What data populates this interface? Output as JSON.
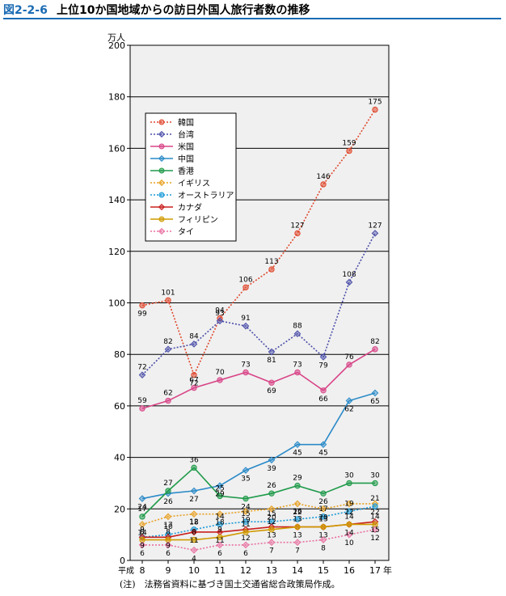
{
  "figure": {
    "number": "図2-2-6",
    "title": "上位10か国地域からの訪日外国人旅行者数の推移",
    "note": "(注)　法務省資料に基づき国土交通省総合政策局作成。"
  },
  "chart_data": {
    "type": "line",
    "ylabel": "万人",
    "xlabel": "",
    "x_prefix": "平成",
    "x_suffix": "年",
    "categories": [
      "8",
      "9",
      "10",
      "11",
      "12",
      "13",
      "14",
      "15",
      "16",
      "17"
    ],
    "ylim": [
      0,
      200
    ],
    "yticks": [
      0,
      20,
      40,
      60,
      80,
      100,
      120,
      140,
      160,
      180,
      200
    ],
    "grid": true,
    "legend_position": "top-left",
    "series": [
      {
        "name": "韓国",
        "values": [
          99,
          101,
          72,
          94,
          106,
          113,
          127,
          146,
          159,
          175
        ],
        "color": "#e0492e",
        "dash": "dotted",
        "labels": true
      },
      {
        "name": "台湾",
        "values": [
          72,
          82,
          84,
          93,
          91,
          81,
          88,
          79,
          108,
          127
        ],
        "color": "#4a4ea8",
        "dash": "dotted",
        "labels": true
      },
      {
        "name": "米国",
        "values": [
          59,
          62,
          67,
          70,
          73,
          69,
          73,
          66,
          76,
          82
        ],
        "color": "#d84688",
        "dash": "solid",
        "labels": true
      },
      {
        "name": "中国",
        "values": [
          24,
          26,
          27,
          29,
          35,
          39,
          45,
          45,
          62,
          65
        ],
        "color": "#2a8ac8",
        "dash": "solid",
        "labels": true
      },
      {
        "name": "香港",
        "values": [
          17,
          27,
          36,
          25,
          24,
          26,
          29,
          26,
          30,
          30
        ],
        "color": "#1f9a4a",
        "dash": "solid",
        "labels": true
      },
      {
        "name": "イギリス",
        "values": [
          14,
          17,
          18,
          18,
          19,
          20,
          22,
          20,
          22,
          22
        ],
        "color": "#e8a020",
        "dash": "dotted",
        "labels": true
      },
      {
        "name": "オーストラリア",
        "values": [
          9,
          10,
          12,
          14,
          15,
          15,
          16,
          17,
          19,
          21
        ],
        "color": "#1a9ad8",
        "dash": "dotted",
        "labels": true
      },
      {
        "name": "カナダ",
        "values": [
          9,
          9,
          11,
          11,
          12,
          13,
          13,
          13,
          14,
          15
        ],
        "color": "#c8201e",
        "dash": "solid",
        "labels": true
      },
      {
        "name": "フィリピン",
        "values": [
          8,
          8,
          8,
          9,
          11,
          12,
          13,
          13,
          14,
          14
        ],
        "color": "#d09a00",
        "dash": "solid",
        "labels": true
      },
      {
        "name": "タイ",
        "values": [
          6,
          6,
          4,
          6,
          6,
          7,
          7,
          8,
          10,
          12
        ],
        "color": "#e870a0",
        "dash": "dotted",
        "labels": true
      }
    ]
  }
}
